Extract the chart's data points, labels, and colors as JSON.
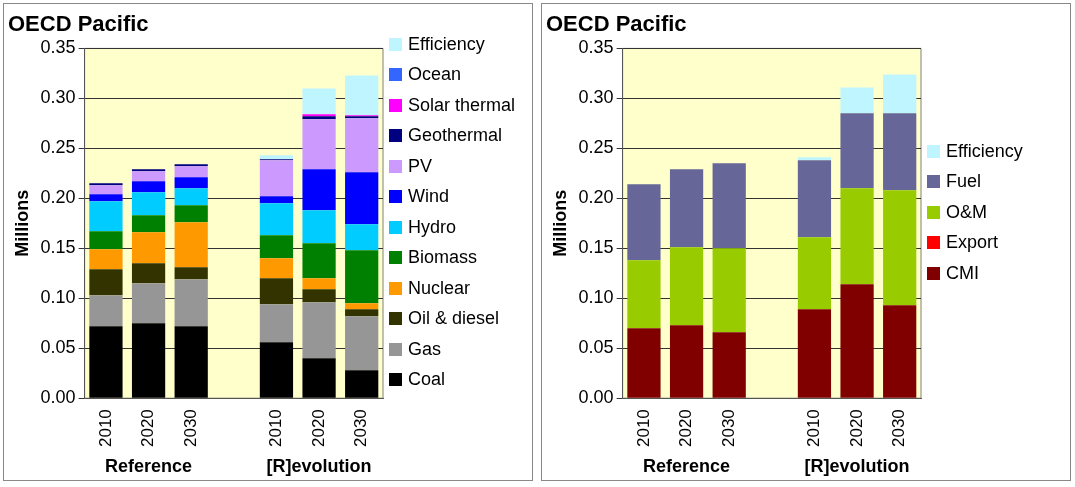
{
  "chart_data": [
    {
      "type": "bar",
      "title": "OECD Pacific",
      "ylabel": "Millions",
      "categories": [
        "2010",
        "2020",
        "2030",
        null,
        "2010",
        "2020",
        "2030"
      ],
      "stacked": true,
      "legend": "right",
      "grid": "y",
      "ylim": [
        0,
        0.35
      ],
      "yticks": [
        {
          "value": 0,
          "label": "0.00"
        },
        {
          "value": 0.05,
          "label": "0.05"
        },
        {
          "value": 0.1,
          "label": "0.10"
        },
        {
          "value": 0.15,
          "label": "0.15"
        },
        {
          "value": 0.2,
          "label": "0.20"
        },
        {
          "value": 0.25,
          "label": "0.25"
        },
        {
          "value": 0.3,
          "label": "0.30"
        },
        {
          "value": 0.35,
          "label": "0.35"
        }
      ],
      "annotations": [
        "Reference",
        "[R]evolution"
      ],
      "series": [
        {
          "name": "Coal",
          "color": "#000000",
          "values": [
            0.072,
            0.075,
            0.072,
            null,
            0.056,
            0.04,
            0.028
          ]
        },
        {
          "name": "Gas",
          "color": "#969696",
          "values": [
            0.031,
            0.04,
            0.047,
            null,
            0.038,
            0.056,
            0.054
          ]
        },
        {
          "name": "Oil & diesel",
          "color": "#333300",
          "values": [
            0.026,
            0.02,
            0.012,
            null,
            0.026,
            0.013,
            0.007
          ]
        },
        {
          "name": "Nuclear",
          "color": "#ff9900",
          "values": [
            0.02,
            0.031,
            0.045,
            null,
            0.02,
            0.011,
            0.006
          ]
        },
        {
          "name": "Biomass",
          "color": "#008000",
          "values": [
            0.018,
            0.017,
            0.017,
            null,
            0.023,
            0.035,
            0.053
          ]
        },
        {
          "name": "Hydro",
          "color": "#00ccff",
          "values": [
            0.03,
            0.023,
            0.017,
            null,
            0.032,
            0.033,
            0.026
          ]
        },
        {
          "name": "Wind",
          "color": "#0000ff",
          "values": [
            0.007,
            0.011,
            0.011,
            null,
            0.007,
            0.041,
            0.052
          ]
        },
        {
          "name": "PV",
          "color": "#cc99ff",
          "values": [
            0.009,
            0.01,
            0.011,
            null,
            0.036,
            0.05,
            0.054
          ]
        },
        {
          "name": "Geothermal",
          "color": "#000080",
          "values": [
            0.002,
            0.002,
            0.002,
            null,
            0.001,
            0.003,
            0.002
          ]
        },
        {
          "name": "Solar thermal",
          "color": "#ff00ff",
          "values": [
            0,
            0,
            0,
            null,
            0,
            0.002,
            0.001
          ]
        },
        {
          "name": "Ocean",
          "color": "#3366ff",
          "values": [
            0,
            0,
            0,
            null,
            0,
            0,
            0
          ]
        },
        {
          "name": "Efficiency",
          "color": "#bff5ff",
          "values": [
            0,
            0,
            0,
            null,
            0.004,
            0.026,
            0.04
          ]
        }
      ]
    },
    {
      "type": "bar",
      "title": "OECD Pacific",
      "ylabel": "Millions",
      "categories": [
        "2010",
        "2020",
        "2030",
        null,
        "2010",
        "2020",
        "2030"
      ],
      "stacked": true,
      "legend": "right",
      "grid": "y",
      "ylim": [
        0,
        0.35
      ],
      "yticks": [
        {
          "value": 0,
          "label": "0.00"
        },
        {
          "value": 0.05,
          "label": "0.05"
        },
        {
          "value": 0.1,
          "label": "0.10"
        },
        {
          "value": 0.15,
          "label": "0.15"
        },
        {
          "value": 0.2,
          "label": "0.20"
        },
        {
          "value": 0.25,
          "label": "0.25"
        },
        {
          "value": 0.3,
          "label": "0.30"
        },
        {
          "value": 0.35,
          "label": "0.35"
        }
      ],
      "annotations": [
        "Reference",
        "[R]evolution"
      ],
      "series": [
        {
          "name": "CMI",
          "color": "#800000",
          "values": [
            0.07,
            0.073,
            0.066,
            null,
            0.089,
            0.114,
            0.093
          ]
        },
        {
          "name": "Export",
          "color": "#ff0000",
          "values": [
            0,
            0,
            0,
            null,
            0,
            0,
            0
          ]
        },
        {
          "name": "O&M",
          "color": "#99cc00",
          "values": [
            0.068,
            0.078,
            0.084,
            null,
            0.072,
            0.096,
            0.115
          ]
        },
        {
          "name": "Fuel",
          "color": "#666699",
          "values": [
            0.076,
            0.078,
            0.085,
            null,
            0.077,
            0.075,
            0.077
          ]
        },
        {
          "name": "Efficiency",
          "color": "#bff5ff",
          "values": [
            0,
            0,
            0,
            null,
            0.003,
            0.026,
            0.039
          ]
        }
      ]
    }
  ]
}
